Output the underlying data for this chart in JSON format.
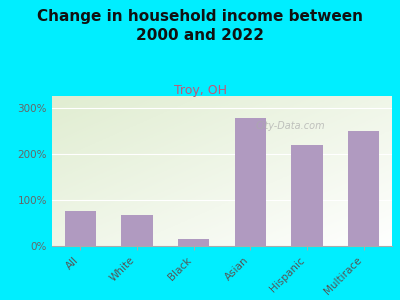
{
  "title": "Change in household income between\n2000 and 2022",
  "subtitle": "Troy, OH",
  "categories": [
    "All",
    "White",
    "Black",
    "Asian",
    "Hispanic",
    "Multirace"
  ],
  "values": [
    75,
    68,
    15,
    278,
    218,
    250
  ],
  "bar_color": "#b09ac0",
  "background_outer": "#00eeff",
  "title_fontsize": 11,
  "subtitle_color": "#c05878",
  "subtitle_fontsize": 9,
  "tick_label_color": "#666666",
  "axis_label_color": "#555555",
  "watermark": "City-Data.com",
  "ylim": [
    0,
    325
  ],
  "yticks": [
    0,
    100,
    200,
    300
  ],
  "ytick_labels": [
    "0%",
    "100%",
    "200%",
    "300%"
  ]
}
